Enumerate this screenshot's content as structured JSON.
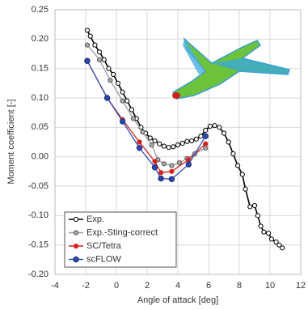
{
  "chart_data": {
    "type": "line",
    "xlabel": "Angle of attack [deg]",
    "ylabel": "Moment coefficient [-]",
    "xlim": [
      -4,
      12
    ],
    "xticks": [
      -4,
      -2,
      0,
      2,
      4,
      6,
      8,
      10,
      12
    ],
    "ylim": [
      -0.2,
      0.25
    ],
    "yticks": [
      {
        "value": -0.2,
        "label": "-0.20"
      },
      {
        "value": -0.15,
        "label": "-0.15"
      },
      {
        "value": -0.1,
        "label": "-0.10"
      },
      {
        "value": -0.05,
        "label": "-0.05"
      },
      {
        "value": 0,
        "label": "0.00"
      },
      {
        "value": 0.05,
        "label": "0.05"
      },
      {
        "value": 0.1,
        "label": "0.10"
      },
      {
        "value": 0.15,
        "label": "0.15"
      },
      {
        "value": 0.2,
        "label": "0.20"
      },
      {
        "value": 0.25,
        "label": "0.25"
      }
    ],
    "grid": true,
    "legend": "lower left",
    "series": [
      {
        "name": "Exp.",
        "color": "#000000",
        "marker_fill": "#ffffff",
        "x": [
          -1.9,
          -1.7,
          -1.4,
          -1.1,
          -0.8,
          -0.5,
          -0.2,
          0.1,
          0.4,
          0.7,
          1.0,
          1.3,
          1.6,
          1.9,
          2.2,
          2.5,
          2.8,
          3.1,
          3.4,
          3.7,
          4.0,
          4.3,
          4.6,
          4.9,
          5.2,
          5.5,
          5.8,
          6.1,
          6.4,
          6.7,
          7.0,
          7.3,
          7.6,
          7.9,
          8.2,
          8.4,
          8.7,
          9.0,
          9.2,
          9.4,
          9.6,
          9.9,
          10.1,
          10.4,
          10.6,
          10.8
        ],
        "values": [
          0.215,
          0.205,
          0.19,
          0.178,
          0.165,
          0.15,
          0.14,
          0.125,
          0.11,
          0.095,
          0.08,
          0.065,
          0.05,
          0.04,
          0.032,
          0.027,
          0.022,
          0.018,
          0.016,
          0.017,
          0.02,
          0.023,
          0.026,
          0.027,
          0.03,
          0.035,
          0.045,
          0.052,
          0.053,
          0.05,
          0.04,
          0.025,
          0.005,
          -0.015,
          -0.03,
          -0.055,
          -0.085,
          -0.083,
          -0.1,
          -0.118,
          -0.128,
          -0.13,
          -0.14,
          -0.145,
          -0.15,
          -0.155
        ]
      },
      {
        "name": "Exp.-Sting-correct",
        "color": "#999999",
        "marker_fill": "#aaaaaa",
        "x": [
          -1.9,
          -1.1,
          -0.4,
          0.4,
          1.1,
          1.7,
          2.3,
          2.7,
          3.1,
          3.6,
          4.1,
          4.6,
          5.1,
          5.8
        ],
        "values": [
          0.19,
          0.165,
          0.13,
          0.095,
          0.065,
          0.042,
          0.02,
          -0.005,
          -0.012,
          -0.015,
          -0.01,
          -0.003,
          0.005,
          0.015
        ]
      },
      {
        "name": "SC/Tetra",
        "color": "#d62020",
        "marker_fill": "#d62020",
        "x": [
          -1.9,
          -0.6,
          0.4,
          1.5,
          2.5,
          2.9,
          3.6,
          4.7,
          5.8
        ],
        "values": [
          0.163,
          0.1,
          0.063,
          0.025,
          -0.008,
          -0.027,
          -0.025,
          -0.005,
          0.022
        ]
      },
      {
        "name": "scFLOW",
        "color": "#3050c0",
        "marker_fill": "#2a48b0",
        "x": [
          -1.9,
          -0.6,
          0.4,
          1.5,
          2.5,
          2.9,
          3.6,
          4.7,
          5.8
        ],
        "values": [
          0.163,
          0.1,
          0.06,
          0.015,
          -0.018,
          -0.037,
          -0.038,
          -0.013,
          0.035
        ]
      }
    ]
  }
}
